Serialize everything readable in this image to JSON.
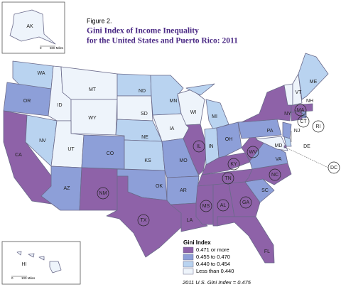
{
  "figure_label": "Figure 2.",
  "title_lines": [
    "Gini Index of Income Inequality",
    "for the United States and Puerto Rico: 2011"
  ],
  "legend": {
    "title": "Gini Index",
    "position": "bottom-right",
    "entries": [
      {
        "label": "0.471 or more",
        "color": "#8e62a8"
      },
      {
        "label": "0.455 to 0.470",
        "color": "#8d9fd8"
      },
      {
        "label": "0.440 to 0.454",
        "color": "#b9d3f0"
      },
      {
        "label": "Less than 0.440",
        "color": "#eef4fb"
      }
    ]
  },
  "note": "2011 U.S. Gini Index = 0.475",
  "insets": [
    {
      "label": "AK",
      "class": 3,
      "scale_start": "0",
      "scale_end": "500 Miles"
    },
    {
      "label": "HI",
      "class": 3,
      "scale_start": "0",
      "scale_end": "100 Miles"
    }
  ],
  "states": [
    {
      "abbr": "WA",
      "class": 2,
      "circled": false
    },
    {
      "abbr": "OR",
      "class": 1,
      "circled": false
    },
    {
      "abbr": "CA",
      "class": 0,
      "circled": false
    },
    {
      "abbr": "NV",
      "class": 2,
      "circled": false
    },
    {
      "abbr": "ID",
      "class": 3,
      "circled": false
    },
    {
      "abbr": "MT",
      "class": 3,
      "circled": false
    },
    {
      "abbr": "WY",
      "class": 3,
      "circled": false
    },
    {
      "abbr": "UT",
      "class": 3,
      "circled": false
    },
    {
      "abbr": "AZ",
      "class": 1,
      "circled": false
    },
    {
      "abbr": "CO",
      "class": 1,
      "circled": false
    },
    {
      "abbr": "NM",
      "class": 0,
      "circled": true
    },
    {
      "abbr": "ND",
      "class": 2,
      "circled": false
    },
    {
      "abbr": "SD",
      "class": 3,
      "circled": false
    },
    {
      "abbr": "NE",
      "class": 2,
      "circled": false
    },
    {
      "abbr": "KS",
      "class": 2,
      "circled": false
    },
    {
      "abbr": "OK",
      "class": 1,
      "circled": false
    },
    {
      "abbr": "TX",
      "class": 0,
      "circled": true
    },
    {
      "abbr": "MN",
      "class": 2,
      "circled": false
    },
    {
      "abbr": "IA",
      "class": 3,
      "circled": false
    },
    {
      "abbr": "MO",
      "class": 1,
      "circled": false
    },
    {
      "abbr": "AR",
      "class": 1,
      "circled": false
    },
    {
      "abbr": "LA",
      "class": 0,
      "circled": false
    },
    {
      "abbr": "WI",
      "class": 3,
      "circled": false
    },
    {
      "abbr": "IL",
      "class": 0,
      "circled": true
    },
    {
      "abbr": "MI",
      "class": 2,
      "circled": false
    },
    {
      "abbr": "IN",
      "class": 2,
      "circled": false
    },
    {
      "abbr": "OH",
      "class": 1,
      "circled": false
    },
    {
      "abbr": "KY",
      "class": 0,
      "circled": true
    },
    {
      "abbr": "TN",
      "class": 0,
      "circled": true
    },
    {
      "abbr": "MS",
      "class": 0,
      "circled": true
    },
    {
      "abbr": "AL",
      "class": 0,
      "circled": true
    },
    {
      "abbr": "GA",
      "class": 0,
      "circled": true
    },
    {
      "abbr": "FL",
      "class": 0,
      "circled": false
    },
    {
      "abbr": "SC",
      "class": 1,
      "circled": false
    },
    {
      "abbr": "NC",
      "class": 0,
      "circled": true
    },
    {
      "abbr": "VA",
      "class": 1,
      "circled": false
    },
    {
      "abbr": "WV",
      "class": 0,
      "circled": true
    },
    {
      "abbr": "PA",
      "class": 1,
      "circled": false
    },
    {
      "abbr": "NY",
      "class": 0,
      "circled": false
    },
    {
      "abbr": "MD",
      "class": 3,
      "circled": false
    },
    {
      "abbr": "DE",
      "class": 2,
      "circled": false
    },
    {
      "abbr": "NJ",
      "class": 1,
      "circled": false
    },
    {
      "abbr": "CT",
      "class": 0,
      "circled": true
    },
    {
      "abbr": "RI",
      "class": 1,
      "circled": true
    },
    {
      "abbr": "MA",
      "class": 0,
      "circled": true
    },
    {
      "abbr": "VT",
      "class": 3,
      "circled": false
    },
    {
      "abbr": "NH",
      "class": 3,
      "circled": false
    },
    {
      "abbr": "ME",
      "class": 2,
      "circled": false
    },
    {
      "abbr": "DC",
      "class": 0,
      "circled": true
    }
  ]
}
